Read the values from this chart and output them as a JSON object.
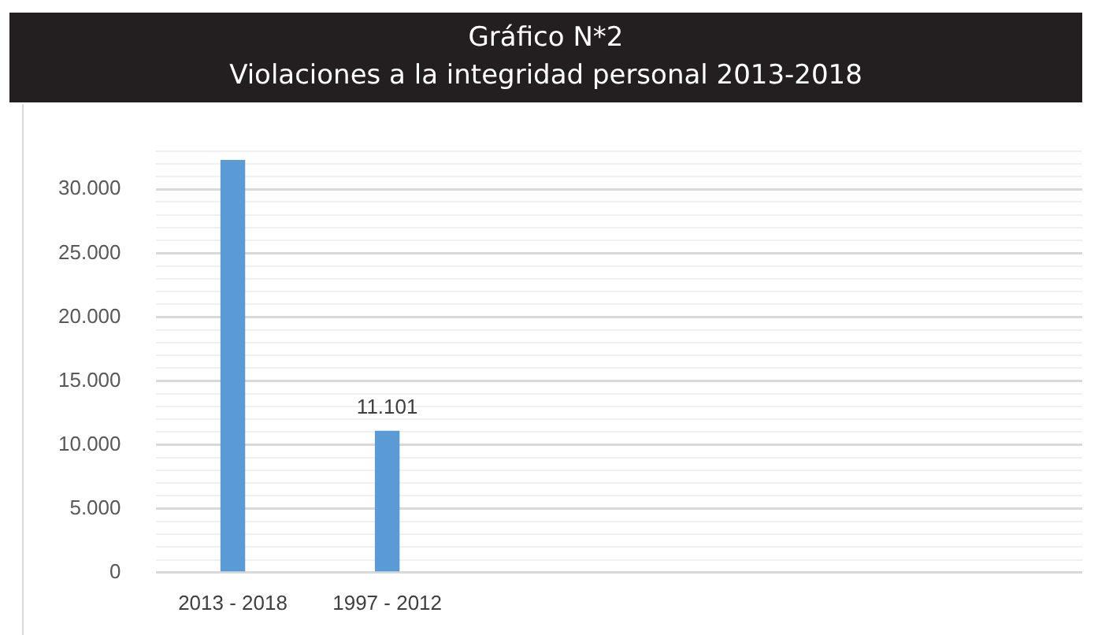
{
  "chart_data": {
    "type": "bar",
    "title": "Gráfico N*2",
    "subtitle": "Violaciones a la integridad personal 2013-2018",
    "categories": [
      "2013 - 2018",
      "1997 - 2012",
      null,
      null,
      null,
      null
    ],
    "values": [
      32300,
      11101,
      null,
      null,
      null,
      null
    ],
    "value_labels": [
      null,
      "11.101",
      null,
      null,
      null,
      null
    ],
    "color": "#5b9bd5",
    "ylim": [
      0,
      33000
    ],
    "yticks": [
      {
        "value": 0,
        "label": "0"
      },
      {
        "value": 1000,
        "label": null
      },
      {
        "value": 2000,
        "label": null
      },
      {
        "value": 3000,
        "label": null
      },
      {
        "value": 4000,
        "label": null
      },
      {
        "value": 5000,
        "label": "5.000"
      },
      {
        "value": 6000,
        "label": null
      },
      {
        "value": 7000,
        "label": null
      },
      {
        "value": 8000,
        "label": null
      },
      {
        "value": 9000,
        "label": null
      },
      {
        "value": 10000,
        "label": "10.000"
      },
      {
        "value": 11000,
        "label": null
      },
      {
        "value": 12000,
        "label": null
      },
      {
        "value": 13000,
        "label": null
      },
      {
        "value": 14000,
        "label": null
      },
      {
        "value": 15000,
        "label": "15.000"
      },
      {
        "value": 16000,
        "label": null
      },
      {
        "value": 17000,
        "label": null
      },
      {
        "value": 18000,
        "label": null
      },
      {
        "value": 19000,
        "label": null
      },
      {
        "value": 20000,
        "label": "20.000"
      },
      {
        "value": 21000,
        "label": null
      },
      {
        "value": 22000,
        "label": null
      },
      {
        "value": 23000,
        "label": null
      },
      {
        "value": 24000,
        "label": null
      },
      {
        "value": 25000,
        "label": "25.000"
      },
      {
        "value": 26000,
        "label": null
      },
      {
        "value": 27000,
        "label": null
      },
      {
        "value": 28000,
        "label": null
      },
      {
        "value": 29000,
        "label": null
      },
      {
        "value": 30000,
        "label": "30.000"
      },
      {
        "value": 31000,
        "label": null
      },
      {
        "value": 32000,
        "label": null
      },
      {
        "value": 33000,
        "label": null
      }
    ],
    "grid": "y"
  }
}
